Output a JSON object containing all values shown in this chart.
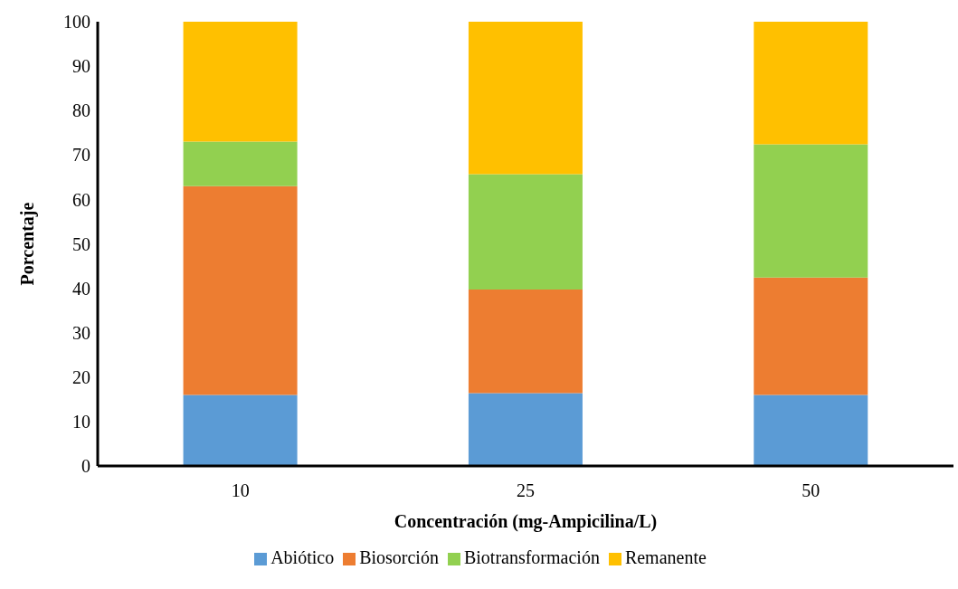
{
  "chart_data": {
    "type": "bar",
    "stacked": true,
    "xlabel": "Concentración (mg-Ampicilina/L)",
    "ylabel": "Porcentaje",
    "categories": [
      "10",
      "25",
      "50"
    ],
    "series": [
      {
        "name": "Abiótico",
        "color": "#5b9bd5",
        "values": [
          16,
          16.4,
          16
        ]
      },
      {
        "name": "Biosorción",
        "color": "#ed7d31",
        "values": [
          47,
          23.3,
          26.4
        ]
      },
      {
        "name": "Biotransformación",
        "color": "#92d050",
        "values": [
          10,
          26,
          30
        ]
      },
      {
        "name": "Remanente",
        "color": "#ffc000",
        "values": [
          27,
          34.3,
          27.6
        ]
      }
    ],
    "ylim": [
      0,
      100
    ],
    "yticks": [
      0,
      10,
      20,
      30,
      40,
      50,
      60,
      70,
      80,
      90,
      100
    ],
    "grid": false,
    "legend": "bottom"
  }
}
